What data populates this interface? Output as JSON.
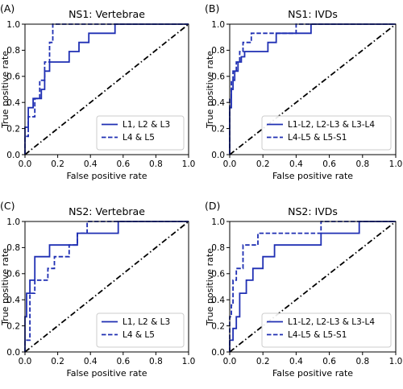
{
  "colors": {
    "series": "#1f2fb3",
    "chance": "#000000",
    "axes": "#000000"
  },
  "chart_data": [
    {
      "type": "line",
      "panel_label": "(A)",
      "title": "NS1: Vertebrae",
      "xlabel": "False positive rate",
      "ylabel": "True positive rate",
      "xlim": [
        0,
        1
      ],
      "ylim": [
        0,
        1
      ],
      "xticks": [
        "0.0",
        "0.2",
        "0.4",
        "0.6",
        "0.8",
        "1.0"
      ],
      "yticks": [
        "0.0",
        "0.2",
        "0.4",
        "0.6",
        "0.8",
        "1.0"
      ],
      "legend_position": "lower-right",
      "grid": false,
      "chance_line": true,
      "series": [
        {
          "name": "L1, L2 & L3",
          "style": "solid",
          "x": [
            0.0,
            0.0,
            0.02,
            0.02,
            0.05,
            0.05,
            0.1,
            0.1,
            0.12,
            0.12,
            0.15,
            0.15,
            0.27,
            0.27,
            0.33,
            0.33,
            0.39,
            0.39,
            0.44,
            0.44,
            0.55,
            0.55,
            1.0
          ],
          "y": [
            0.0,
            0.21,
            0.21,
            0.36,
            0.36,
            0.43,
            0.43,
            0.5,
            0.5,
            0.64,
            0.64,
            0.71,
            0.71,
            0.79,
            0.79,
            0.86,
            0.86,
            0.93,
            0.93,
            0.93,
            0.93,
            1.0,
            1.0
          ]
        },
        {
          "name": "L4 & L5",
          "style": "dashed",
          "x": [
            0.0,
            0.0,
            0.02,
            0.02,
            0.06,
            0.06,
            0.09,
            0.09,
            0.12,
            0.12,
            0.15,
            0.15,
            0.17,
            0.17,
            1.0
          ],
          "y": [
            0.0,
            0.14,
            0.14,
            0.29,
            0.29,
            0.43,
            0.43,
            0.57,
            0.57,
            0.71,
            0.71,
            0.86,
            0.86,
            1.0,
            1.0
          ]
        }
      ]
    },
    {
      "type": "line",
      "panel_label": "(B)",
      "title": "NS1: IVDs",
      "xlabel": "False positive rate",
      "ylabel": "True positive rate",
      "xlim": [
        0,
        1
      ],
      "ylim": [
        0,
        1
      ],
      "xticks": [
        "0.0",
        "0.2",
        "0.4",
        "0.6",
        "0.8",
        "1.0"
      ],
      "yticks": [
        "0.0",
        "0.2",
        "0.4",
        "0.6",
        "0.8",
        "1.0"
      ],
      "legend_position": "lower-right",
      "grid": false,
      "chance_line": true,
      "series": [
        {
          "name": "L1-L2, L2-L3 & L3-L4",
          "style": "solid",
          "x": [
            0.0,
            0.0,
            0.01,
            0.01,
            0.02,
            0.02,
            0.03,
            0.03,
            0.05,
            0.05,
            0.07,
            0.07,
            0.09,
            0.09,
            0.23,
            0.23,
            0.28,
            0.28,
            0.49,
            0.49,
            1.0
          ],
          "y": [
            0.0,
            0.36,
            0.36,
            0.5,
            0.5,
            0.57,
            0.57,
            0.64,
            0.64,
            0.71,
            0.71,
            0.75,
            0.75,
            0.79,
            0.79,
            0.86,
            0.86,
            0.93,
            0.93,
            1.0,
            1.0
          ]
        },
        {
          "name": "L4-L5 & L5-S1",
          "style": "dashed",
          "x": [
            0.0,
            0.0,
            0.01,
            0.01,
            0.02,
            0.02,
            0.04,
            0.04,
            0.06,
            0.06,
            0.08,
            0.08,
            0.1,
            0.1,
            0.13,
            0.13,
            0.34,
            0.34,
            0.4,
            0.4,
            1.0
          ],
          "y": [
            0.0,
            0.43,
            0.43,
            0.57,
            0.57,
            0.64,
            0.64,
            0.71,
            0.71,
            0.79,
            0.79,
            0.86,
            0.86,
            0.86,
            0.86,
            0.93,
            0.93,
            0.93,
            0.93,
            1.0,
            1.0
          ]
        }
      ]
    },
    {
      "type": "line",
      "panel_label": "(C)",
      "title": "NS2: Vertebrae",
      "xlabel": "False positive rate",
      "ylabel": "True positive rate",
      "xlim": [
        0,
        1
      ],
      "ylim": [
        0,
        1
      ],
      "xticks": [
        "0.0",
        "0.2",
        "0.4",
        "0.6",
        "0.8",
        "1.0"
      ],
      "yticks": [
        "0.0",
        "0.2",
        "0.4",
        "0.6",
        "0.8",
        "1.0"
      ],
      "legend_position": "lower-right",
      "grid": false,
      "chance_line": true,
      "series": [
        {
          "name": "L1, L2 & L3",
          "style": "solid",
          "x": [
            0.0,
            0.0,
            0.01,
            0.01,
            0.03,
            0.03,
            0.06,
            0.06,
            0.15,
            0.15,
            0.19,
            0.19,
            0.27,
            0.27,
            0.32,
            0.32,
            0.57,
            0.57,
            1.0
          ],
          "y": [
            0.0,
            0.27,
            0.27,
            0.45,
            0.45,
            0.55,
            0.55,
            0.73,
            0.73,
            0.82,
            0.82,
            0.82,
            0.82,
            0.82,
            0.82,
            0.91,
            0.91,
            1.0,
            1.0
          ]
        },
        {
          "name": "L4 & L5",
          "style": "dashed",
          "x": [
            0.0,
            0.0,
            0.03,
            0.03,
            0.06,
            0.06,
            0.14,
            0.14,
            0.18,
            0.18,
            0.27,
            0.27,
            0.32,
            0.32,
            0.38,
            0.38,
            1.0
          ],
          "y": [
            0.0,
            0.09,
            0.09,
            0.45,
            0.45,
            0.55,
            0.55,
            0.64,
            0.64,
            0.73,
            0.73,
            0.82,
            0.82,
            0.91,
            0.91,
            1.0,
            1.0
          ]
        }
      ]
    },
    {
      "type": "line",
      "panel_label": "(D)",
      "title": "NS2: IVDs",
      "xlabel": "False positive rate",
      "ylabel": "True positive rate",
      "xlim": [
        0,
        1
      ],
      "ylim": [
        0,
        1
      ],
      "xticks": [
        "0.0",
        "0.2",
        "0.4",
        "0.6",
        "0.8",
        "1.0"
      ],
      "yticks": [
        "0.0",
        "0.2",
        "0.4",
        "0.6",
        "0.8",
        "1.0"
      ],
      "legend_position": "lower-right",
      "grid": false,
      "chance_line": true,
      "series": [
        {
          "name": "L1-L2, L2-L3 & L3-L4",
          "style": "solid",
          "x": [
            0.0,
            0.0,
            0.02,
            0.02,
            0.04,
            0.04,
            0.06,
            0.06,
            0.1,
            0.1,
            0.14,
            0.14,
            0.17,
            0.17,
            0.2,
            0.2,
            0.27,
            0.27,
            0.55,
            0.55,
            0.78,
            0.78,
            1.0
          ],
          "y": [
            0.0,
            0.09,
            0.09,
            0.18,
            0.18,
            0.27,
            0.27,
            0.45,
            0.45,
            0.55,
            0.55,
            0.64,
            0.64,
            0.64,
            0.64,
            0.73,
            0.73,
            0.82,
            0.82,
            0.91,
            0.91,
            1.0,
            1.0
          ]
        },
        {
          "name": "L4-L5 & L5-S1",
          "style": "dashed",
          "x": [
            0.0,
            0.0,
            0.01,
            0.01,
            0.02,
            0.02,
            0.04,
            0.04,
            0.08,
            0.08,
            0.17,
            0.17,
            0.22,
            0.22,
            0.55,
            0.55,
            1.0
          ],
          "y": [
            0.0,
            0.27,
            0.27,
            0.36,
            0.36,
            0.55,
            0.55,
            0.64,
            0.64,
            0.82,
            0.82,
            0.91,
            0.91,
            0.91,
            0.91,
            1.0,
            1.0
          ]
        }
      ]
    }
  ]
}
